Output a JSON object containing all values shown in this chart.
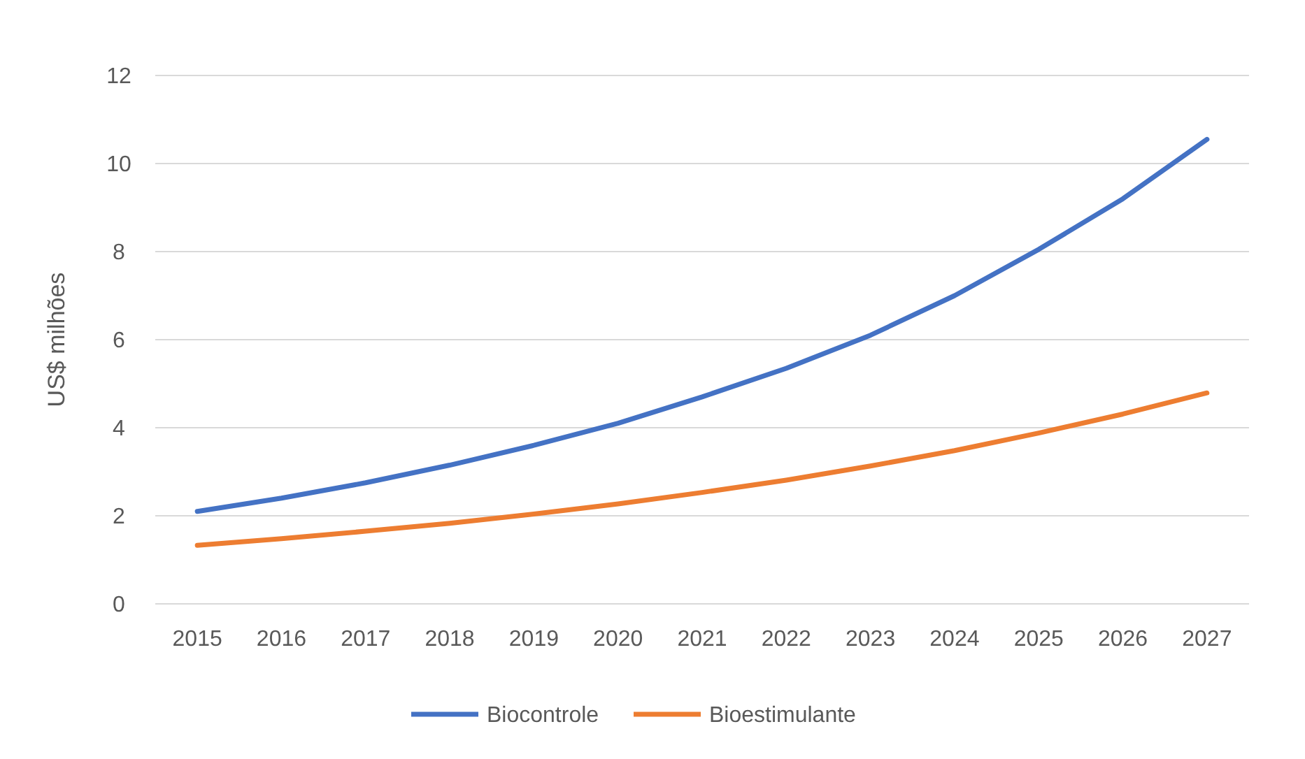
{
  "chart_data": {
    "type": "line",
    "ylabel": "US$ milhões",
    "categories": [
      "2015",
      "2016",
      "2017",
      "2018",
      "2019",
      "2020",
      "2021",
      "2022",
      "2023",
      "2024",
      "2025",
      "2026",
      "2027"
    ],
    "series": [
      {
        "name": "Biocontrole",
        "color": "#4472c4",
        "values": [
          2.1,
          2.4,
          2.75,
          3.15,
          3.6,
          4.1,
          4.7,
          5.35,
          6.1,
          7.0,
          8.05,
          9.2,
          10.55
        ]
      },
      {
        "name": "Bioestimulante",
        "color": "#ed7d31",
        "values": [
          1.33,
          1.48,
          1.65,
          1.83,
          2.04,
          2.27,
          2.53,
          2.81,
          3.13,
          3.48,
          3.88,
          4.31,
          4.79
        ]
      }
    ],
    "ylim": [
      0,
      12
    ],
    "yticks": [
      0,
      2,
      4,
      6,
      8,
      10,
      12
    ],
    "grid": "y",
    "legend": "bottom",
    "marker": "none",
    "line_style": "solid"
  }
}
